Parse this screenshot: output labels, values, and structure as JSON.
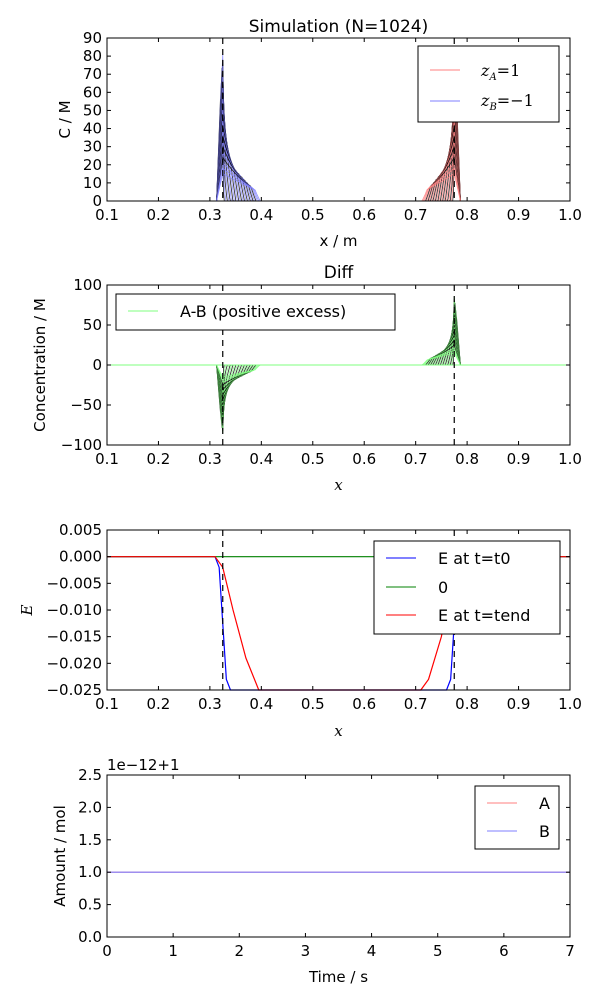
{
  "chart_data": [
    {
      "type": "line",
      "title": "Simulation (N=1024)",
      "xlabel": "x / m",
      "ylabel": "C / M",
      "xlim": [
        0.1,
        1.0
      ],
      "ylim": [
        0,
        90
      ],
      "x_ticks": [
        "0.1",
        "0.2",
        "0.3",
        "0.4",
        "0.5",
        "0.6",
        "0.7",
        "0.8",
        "0.9",
        "1.0"
      ],
      "y_ticks": [
        "0",
        "10",
        "20",
        "30",
        "40",
        "50",
        "60",
        "70",
        "80",
        "90"
      ],
      "legend": {
        "placement": "top-right",
        "entries": [
          {
            "label_main": "z",
            "label_sub": "A",
            "label_rest": "=1",
            "color": "#ff7f7f"
          },
          {
            "label_main": "z",
            "label_sub": "B",
            "label_rest": "=−1",
            "color": "#7f7fff"
          }
        ]
      },
      "vlines": [
        0.325,
        0.775
      ],
      "series": [
        {
          "color": "#7f7fff",
          "center": 0.325,
          "peak": 90,
          "sign": 1,
          "side": "right",
          "plateau": 15,
          "width": 0.07
        },
        {
          "color": "#ff7f7f",
          "center": 0.775,
          "peak": 90,
          "sign": 1,
          "side": "left",
          "plateau": 15,
          "width": 0.06
        }
      ]
    },
    {
      "type": "line",
      "title": "Diff",
      "xlabel": "x",
      "ylabel": "Concentration / M",
      "xlim": [
        0.1,
        1.0
      ],
      "ylim": [
        -100,
        100
      ],
      "x_ticks": [
        "0.1",
        "0.2",
        "0.3",
        "0.4",
        "0.5",
        "0.6",
        "0.7",
        "0.8",
        "0.9",
        "1.0"
      ],
      "y_ticks": [
        "−100",
        "−50",
        "0",
        "50",
        "100"
      ],
      "legend": {
        "placement": "top-left",
        "entries": [
          {
            "label": "A-B (positive excess)",
            "color": "#7fff7f"
          }
        ]
      },
      "vlines": [
        0.325,
        0.775
      ],
      "series": [
        {
          "color": "#7fff7f",
          "center": 0.325,
          "peak": 95,
          "sign": -1,
          "side": "right",
          "plateau": 15,
          "width": 0.07
        },
        {
          "color": "#7fff7f",
          "center": 0.775,
          "peak": 95,
          "sign": 1,
          "side": "left",
          "plateau": 15,
          "width": 0.06
        }
      ]
    },
    {
      "type": "line",
      "xlabel": "x",
      "ylabel": "E",
      "xlim": [
        0.1,
        1.0
      ],
      "ylim": [
        -0.025,
        0.005
      ],
      "x_ticks": [
        "0.1",
        "0.2",
        "0.3",
        "0.4",
        "0.5",
        "0.6",
        "0.7",
        "0.8",
        "0.9",
        "1.0"
      ],
      "y_ticks": [
        "−0.025",
        "−0.020",
        "−0.015",
        "−0.010",
        "−0.005",
        "0.000",
        "0.005"
      ],
      "legend": {
        "placement": "top-right",
        "entries": [
          {
            "label": "E at t=t0",
            "color": "#0000ff"
          },
          {
            "label": "0",
            "color": "#008000"
          },
          {
            "label": "E at t=tend",
            "color": "#ff0000"
          }
        ]
      },
      "vlines": [
        0.325,
        0.775
      ],
      "series": [
        {
          "name": "E at t=t0",
          "color": "#0000ff",
          "x": [
            0.1,
            0.31,
            0.318,
            0.325,
            0.332,
            0.34,
            0.76,
            0.768,
            0.775,
            0.782,
            0.79,
            1.0
          ],
          "y": [
            0,
            0,
            -0.002,
            -0.0125,
            -0.023,
            -0.025,
            -0.025,
            -0.023,
            -0.0125,
            -0.002,
            0,
            0
          ]
        },
        {
          "name": "0",
          "color": "#008000",
          "x": [
            0.1,
            1.0
          ],
          "y": [
            0,
            0
          ]
        },
        {
          "name": "E at t=tend",
          "color": "#ff0000",
          "x": [
            0.1,
            0.31,
            0.325,
            0.345,
            0.37,
            0.395,
            0.71,
            0.725,
            0.75,
            0.775,
            0.79,
            1.0
          ],
          "y": [
            0,
            0,
            -0.002,
            -0.01,
            -0.019,
            -0.025,
            -0.025,
            -0.023,
            -0.015,
            -0.002,
            0,
            0
          ]
        }
      ]
    },
    {
      "type": "line",
      "xlabel": "Time / s",
      "ylabel": "Amount / mol",
      "offset_text": "1e−12+1",
      "xlim": [
        0,
        7
      ],
      "ylim": [
        0,
        2.5
      ],
      "x_ticks": [
        "0",
        "1",
        "2",
        "3",
        "4",
        "5",
        "6",
        "7"
      ],
      "y_ticks": [
        "0.0",
        "0.5",
        "1.0",
        "1.5",
        "2.0",
        "2.5"
      ],
      "legend": {
        "placement": "top-right",
        "entries": [
          {
            "label": "A",
            "color": "#ff7f7f"
          },
          {
            "label": "B",
            "color": "#7f7fff"
          }
        ]
      },
      "series": [
        {
          "name": "A",
          "color": "#ff7f7f",
          "x": [
            0,
            7
          ],
          "y": [
            1.0,
            1.0
          ]
        },
        {
          "name": "B",
          "color": "#7f7fff",
          "x": [
            0,
            7
          ],
          "y": [
            1.0,
            1.0
          ]
        }
      ]
    }
  ]
}
